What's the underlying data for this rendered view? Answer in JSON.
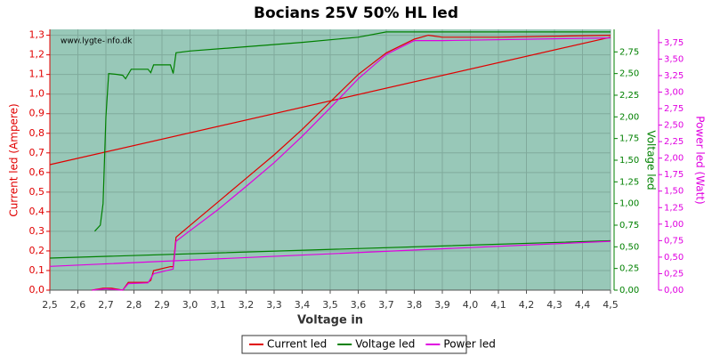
{
  "chart_data": {
    "type": "line",
    "title": "Bocians 25V 50% HL led",
    "watermark": "www.lygte-info.dk",
    "xlabel": "Voltage in",
    "ylabel": "Current led (Ampere)",
    "y2label": "Voltage led",
    "y3label": "Power led (Watt)",
    "xlim": [
      2.5,
      4.5
    ],
    "xticks": [
      {
        "value": 2.5,
        "label": "2,5"
      },
      {
        "value": 2.6,
        "label": "2,6"
      },
      {
        "value": 2.7,
        "label": "2,7"
      },
      {
        "value": 2.8,
        "label": "2,8"
      },
      {
        "value": 2.9,
        "label": "2,9"
      },
      {
        "value": 3.0,
        "label": "3,0"
      },
      {
        "value": 3.1,
        "label": "3,1"
      },
      {
        "value": 3.2,
        "label": "3,2"
      },
      {
        "value": 3.3,
        "label": "3,3"
      },
      {
        "value": 3.4,
        "label": "3,4"
      },
      {
        "value": 3.5,
        "label": "3,5"
      },
      {
        "value": 3.6,
        "label": "3,6"
      },
      {
        "value": 3.7,
        "label": "3,7"
      },
      {
        "value": 3.8,
        "label": "3,8"
      },
      {
        "value": 3.9,
        "label": "3,9"
      },
      {
        "value": 4.0,
        "label": "4,0"
      },
      {
        "value": 4.1,
        "label": "4,1"
      },
      {
        "value": 4.2,
        "label": "4,2"
      },
      {
        "value": 4.3,
        "label": "4,3"
      },
      {
        "value": 4.4,
        "label": "4,4"
      },
      {
        "value": 4.5,
        "label": "4,5"
      }
    ],
    "ylim": [
      0,
      1.33
    ],
    "yticks": [
      {
        "value": 0,
        "label": "0,0"
      },
      {
        "value": 0.1,
        "label": "0,1"
      },
      {
        "value": 0.2,
        "label": "0,2"
      },
      {
        "value": 0.3,
        "label": "0,3"
      },
      {
        "value": 0.4,
        "label": "0,4"
      },
      {
        "value": 0.5,
        "label": "0,5"
      },
      {
        "value": 0.6,
        "label": "0,6"
      },
      {
        "value": 0.7,
        "label": "0,7"
      },
      {
        "value": 0.8,
        "label": "0,8"
      },
      {
        "value": 0.9,
        "label": "0,9"
      },
      {
        "value": 1.0,
        "label": "1,0"
      },
      {
        "value": 1.1,
        "label": "1,1"
      },
      {
        "value": 1.2,
        "label": "1,2"
      },
      {
        "value": 1.3,
        "label": "1,3"
      }
    ],
    "y2lim": [
      0,
      3.01
    ],
    "y2ticks": [
      {
        "value": 0,
        "label": "0,00"
      },
      {
        "value": 0.25,
        "label": "0,25"
      },
      {
        "value": 0.5,
        "label": "0,50"
      },
      {
        "value": 0.75,
        "label": "0,75"
      },
      {
        "value": 1.0,
        "label": "1,00"
      },
      {
        "value": 1.25,
        "label": "1,25"
      },
      {
        "value": 1.5,
        "label": "1,50"
      },
      {
        "value": 1.75,
        "label": "1,75"
      },
      {
        "value": 2.0,
        "label": "2,00"
      },
      {
        "value": 2.25,
        "label": "2,25"
      },
      {
        "value": 2.5,
        "label": "2,50"
      },
      {
        "value": 2.75,
        "label": "2,75"
      }
    ],
    "y3lim": [
      0,
      3.95
    ],
    "y3ticks": [
      {
        "value": 0,
        "label": "0,00"
      },
      {
        "value": 0.25,
        "label": "0,25"
      },
      {
        "value": 0.5,
        "label": "0,50"
      },
      {
        "value": 0.75,
        "label": "0,75"
      },
      {
        "value": 1.0,
        "label": "1,00"
      },
      {
        "value": 1.25,
        "label": "1,25"
      },
      {
        "value": 1.5,
        "label": "1,50"
      },
      {
        "value": 1.75,
        "label": "1,75"
      },
      {
        "value": 2.0,
        "label": "2,00"
      },
      {
        "value": 2.25,
        "label": "2,25"
      },
      {
        "value": 2.5,
        "label": "2,50"
      },
      {
        "value": 2.75,
        "label": "2,75"
      },
      {
        "value": 3.0,
        "label": "3,00"
      },
      {
        "value": 3.25,
        "label": "3,25"
      },
      {
        "value": 3.5,
        "label": "3,50"
      },
      {
        "value": 3.75,
        "label": "3,75"
      }
    ],
    "grid": true,
    "legend": "bottom",
    "series": [
      {
        "name": "Current led",
        "color": "#e00000",
        "axis": "y",
        "x": [
          2.65,
          2.69,
          2.72,
          2.76,
          2.78,
          2.85,
          2.86,
          2.87,
          2.93,
          2.94,
          2.95,
          3.0,
          3.1,
          3.2,
          3.3,
          3.4,
          3.5,
          3.6,
          3.7,
          3.8,
          3.85,
          3.9,
          4.1,
          4.5,
          null,
          2.5,
          4.5
        ],
        "values": [
          0,
          0.01,
          0.01,
          0,
          0.04,
          0.04,
          0.05,
          0.1,
          0.12,
          0.12,
          0.27,
          0.33,
          0.45,
          0.57,
          0.69,
          0.82,
          0.96,
          1.1,
          1.21,
          1.28,
          1.3,
          1.29,
          1.29,
          1.3,
          null,
          0.64,
          1.29
        ]
      },
      {
        "name": "Voltage led",
        "color": "#008000",
        "axis": "y2",
        "x": [
          2.66,
          2.68,
          2.69,
          2.7,
          2.71,
          2.74,
          2.76,
          2.77,
          2.79,
          2.85,
          2.86,
          2.87,
          2.93,
          2.94,
          2.95,
          3.0,
          3.2,
          3.4,
          3.6,
          3.7,
          3.8,
          4.5,
          null,
          2.5,
          4.5
        ],
        "values": [
          0.68,
          0.75,
          1.0,
          2.0,
          2.5,
          2.49,
          2.48,
          2.44,
          2.55,
          2.55,
          2.51,
          2.6,
          2.6,
          2.5,
          2.74,
          2.76,
          2.81,
          2.86,
          2.92,
          2.98,
          2.98,
          2.98,
          null,
          0.37,
          0.57
        ]
      },
      {
        "name": "Power led",
        "color": "#e000e0",
        "axis": "y3",
        "x": [
          2.65,
          2.7,
          2.76,
          2.78,
          2.85,
          2.87,
          2.94,
          2.95,
          3.0,
          3.1,
          3.2,
          3.3,
          3.4,
          3.5,
          3.6,
          3.7,
          3.8,
          3.9,
          4.5,
          null,
          2.5,
          4.5
        ],
        "values": [
          0,
          0.02,
          0,
          0.1,
          0.11,
          0.25,
          0.32,
          0.74,
          0.9,
          1.22,
          1.57,
          1.93,
          2.33,
          2.76,
          3.2,
          3.57,
          3.78,
          3.78,
          3.82,
          null,
          0.36,
          0.74
        ]
      }
    ]
  }
}
